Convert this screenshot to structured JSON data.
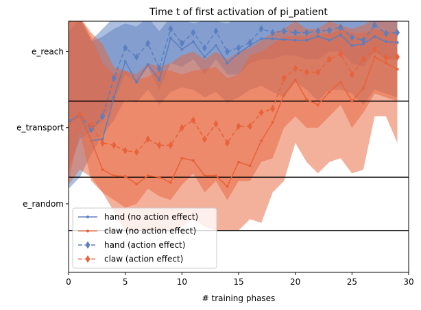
{
  "chart_data": {
    "type": "line",
    "title": "Time t of first activation of pi_patient",
    "xlabel": "# training phases",
    "ylabel": "",
    "xlim": [
      0,
      30
    ],
    "ylim": [
      -0.35,
      2.95
    ],
    "xticks": [
      0,
      5,
      10,
      15,
      20,
      25,
      30
    ],
    "yticks": [
      {
        "value": 0.55,
        "label": "e_random"
      },
      {
        "value": 1.55,
        "label": "e_transport"
      },
      {
        "value": 2.55,
        "label": "e_reach"
      }
    ],
    "hlines": [
      0.2,
      0.9,
      1.9,
      3.0
    ],
    "grid": false,
    "legend_position": "lower-left",
    "x": [
      0,
      1,
      2,
      3,
      4,
      5,
      6,
      7,
      8,
      9,
      10,
      11,
      12,
      13,
      14,
      15,
      16,
      17,
      18,
      19,
      20,
      21,
      22,
      23,
      24,
      25,
      26,
      27,
      28,
      29
    ],
    "series": [
      {
        "name": "hand (no action effect)",
        "color": "#5b7fc0",
        "style": "solid",
        "marker": "dot",
        "values": [
          1.63,
          1.72,
          1.38,
          1.4,
          1.95,
          2.42,
          2.15,
          2.38,
          2.18,
          2.73,
          2.58,
          2.68,
          2.48,
          2.63,
          2.4,
          2.53,
          2.63,
          2.72,
          2.72,
          2.71,
          2.7,
          2.7,
          2.75,
          2.7,
          2.77,
          2.63,
          2.65,
          2.75,
          2.68,
          2.67
        ],
        "band_low": [
          0.75,
          0.9,
          1.2,
          1.45,
          1.65,
          1.92,
          1.88,
          2.05,
          1.85,
          2.02,
          2.08,
          2.05,
          1.95,
          2.02,
          1.88,
          1.95,
          2.05,
          2.1,
          2.02,
          1.95,
          2.15,
          2.05,
          1.9,
          2.05,
          2.05,
          2.0,
          1.85,
          2.05,
          2.0,
          1.95
        ],
        "band_high": [
          2.95,
          3.0,
          2.68,
          2.75,
          2.85,
          2.92,
          2.88,
          3.0,
          2.82,
          3.0,
          2.98,
          2.92,
          2.96,
          2.95,
          2.92,
          3.0,
          3.0,
          2.96,
          3.0,
          2.95,
          3.15,
          3.0,
          3.0,
          2.98,
          3.0,
          2.96,
          2.96,
          3.0,
          2.98,
          2.98
        ]
      },
      {
        "name": "claw (no action effect)",
        "color": "#e8633a",
        "style": "solid",
        "marker": "dot",
        "values": [
          1.62,
          1.7,
          1.38,
          1.0,
          0.92,
          0.91,
          0.81,
          0.92,
          0.9,
          0.83,
          1.15,
          1.12,
          0.92,
          0.92,
          0.78,
          1.1,
          1.05,
          1.38,
          1.62,
          1.98,
          2.18,
          1.92,
          1.85,
          2.02,
          2.15,
          1.9,
          2.07,
          2.48,
          2.4,
          2.32
        ],
        "band_low": [
          0.85,
          1.5,
          0.85,
          0.7,
          0.45,
          0.2,
          0.2,
          0.2,
          0.2,
          0.2,
          0.25,
          0.35,
          0.25,
          0.2,
          0.2,
          0.2,
          0.35,
          0.3,
          0.7,
          0.85,
          1.35,
          1.1,
          0.95,
          1.1,
          1.15,
          0.95,
          1.0,
          1.7,
          1.7,
          1.35
        ],
        "band_high": [
          2.95,
          3.0,
          2.8,
          2.65,
          2.35,
          2.3,
          2.18,
          2.22,
          2.3,
          2.3,
          2.25,
          2.3,
          2.32,
          2.35,
          2.2,
          2.25,
          2.5,
          2.55,
          2.65,
          2.75,
          2.75,
          2.75,
          2.78,
          2.78,
          2.85,
          2.8,
          2.8,
          2.85,
          2.82,
          2.82
        ]
      },
      {
        "name": "hand (action effect)",
        "color": "#5b7fc0",
        "style": "dashed",
        "marker": "diamond",
        "values": [
          1.63,
          1.72,
          1.53,
          1.7,
          2.2,
          2.6,
          2.48,
          2.66,
          2.33,
          2.85,
          2.66,
          2.8,
          2.6,
          2.82,
          2.55,
          2.6,
          2.67,
          2.85,
          2.8,
          2.82,
          2.8,
          2.8,
          2.82,
          2.83,
          2.87,
          2.74,
          2.7,
          2.9,
          2.79,
          2.8
        ],
        "band_low": [
          1.0,
          1.4,
          1.5,
          1.65,
          1.9,
          2.25,
          2.15,
          2.35,
          2.05,
          2.4,
          2.35,
          2.45,
          2.25,
          2.45,
          2.25,
          2.25,
          2.4,
          2.45,
          2.45,
          2.5,
          2.5,
          2.45,
          2.45,
          2.55,
          2.55,
          2.4,
          2.35,
          2.55,
          2.45,
          2.45
        ],
        "band_high": [
          2.8,
          3.0,
          2.7,
          2.85,
          3.0,
          3.0,
          3.0,
          3.05,
          2.95,
          3.05,
          3.05,
          3.05,
          3.0,
          3.05,
          3.0,
          3.05,
          3.0,
          3.05,
          3.05,
          3.05,
          3.15,
          3.05,
          3.05,
          3.05,
          3.05,
          3.05,
          3.0,
          3.05,
          3.05,
          3.05
        ]
      },
      {
        "name": "claw (action effect)",
        "color": "#e8633a",
        "style": "dashed",
        "marker": "diamond",
        "values": [
          1.6,
          1.72,
          1.58,
          1.35,
          1.32,
          1.25,
          1.23,
          1.4,
          1.32,
          1.32,
          1.55,
          1.65,
          1.4,
          1.6,
          1.35,
          1.57,
          1.57,
          1.75,
          1.8,
          2.2,
          2.33,
          2.28,
          2.28,
          2.45,
          2.52,
          2.25,
          2.45,
          2.58,
          2.47,
          2.48
        ],
        "band_low": [
          0.8,
          1.0,
          0.9,
          0.7,
          0.6,
          0.5,
          0.55,
          0.75,
          0.65,
          0.6,
          0.8,
          0.95,
          0.7,
          0.85,
          0.6,
          0.85,
          0.85,
          1.1,
          1.15,
          1.55,
          1.7,
          1.55,
          1.55,
          1.7,
          1.85,
          1.55,
          1.75,
          2.0,
          1.95,
          1.9
        ],
        "band_high": [
          2.95,
          3.0,
          2.75,
          2.4,
          2.25,
          2.3,
          2.25,
          2.4,
          2.35,
          2.4,
          2.5,
          2.55,
          2.45,
          2.55,
          2.45,
          2.55,
          2.6,
          2.7,
          2.8,
          2.85,
          2.95,
          2.85,
          2.85,
          2.95,
          2.9,
          2.85,
          2.9,
          2.98,
          2.95,
          2.95
        ]
      }
    ]
  }
}
